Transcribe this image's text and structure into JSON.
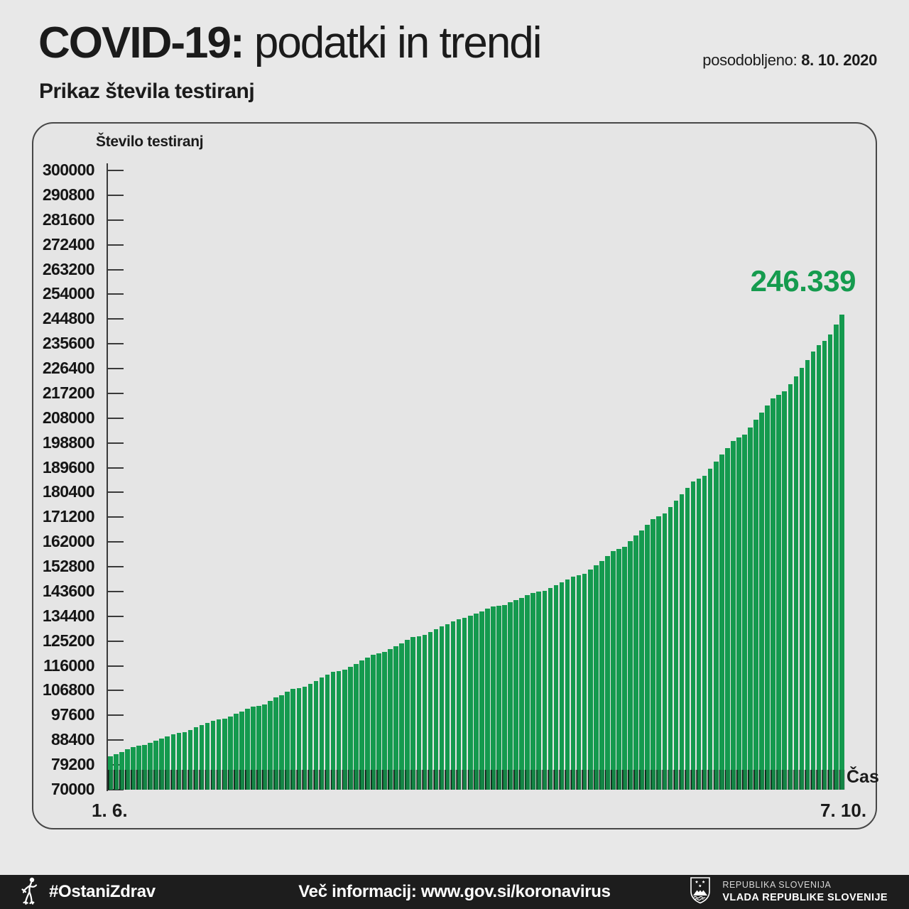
{
  "header": {
    "title_strong": "COVID-19:",
    "title_rest": " podatki in trendi",
    "updated_label": "posodobljeno: ",
    "updated_date": "8. 10. 2020",
    "subtitle": "Prikaz števila testiranj"
  },
  "chart": {
    "y_axis_title": "Število testiranj",
    "value_label": "246.339",
    "x_first": "1. 6.",
    "x_last": "7. 10.",
    "x_axis_label": "Čas",
    "bar_color": "#149a4e",
    "callout_color": "#159b4e"
  },
  "chart_data": {
    "type": "bar",
    "title": "Prikaz števila testiranj",
    "ylabel": "Število testiranj",
    "xlabel": "Čas",
    "ylim": [
      70000,
      300000
    ],
    "ytick_step": 9200,
    "yticks": [
      300000,
      290800,
      281600,
      272400,
      263200,
      254000,
      244800,
      235600,
      226400,
      217200,
      208000,
      198800,
      189600,
      180400,
      171200,
      162000,
      152800,
      143600,
      134400,
      125200,
      116000,
      106800,
      97600,
      88400,
      79200,
      70000
    ],
    "x_start_label": "1. 6.",
    "x_end_label": "7. 10.",
    "final_value": 246339,
    "final_value_label": "246.339",
    "grid": false,
    "legend": false,
    "values": [
      82300,
      83200,
      84100,
      85000,
      85850,
      86250,
      86550,
      87350,
      88200,
      89050,
      89900,
      90700,
      91050,
      91350,
      92200,
      93100,
      94000,
      94850,
      95650,
      96000,
      96300,
      97200,
      98150,
      99100,
      100000,
      100850,
      101250,
      101600,
      102900,
      104200,
      105200,
      106300,
      107400,
      107850,
      108250,
      109350,
      110450,
      111550,
      112650,
      113700,
      114150,
      114550,
      115650,
      116800,
      117950,
      119100,
      120200,
      120650,
      121050,
      122150,
      123300,
      124450,
      125550,
      126600,
      127050,
      127450,
      128500,
      129550,
      130550,
      131500,
      132400,
      133400,
      133800,
      134600,
      135450,
      136300,
      137150,
      137950,
      138350,
      138700,
      139550,
      140450,
      141350,
      142250,
      143100,
      143550,
      143950,
      144900,
      145900,
      146950,
      148050,
      149150,
      149700,
      150200,
      151700,
      153300,
      155000,
      156750,
      158500,
      159400,
      160200,
      162200,
      164300,
      166300,
      168400,
      170500,
      171600,
      172600,
      174900,
      177300,
      179700,
      182100,
      184400,
      185600,
      186700,
      189200,
      191800,
      194400,
      197000,
      199500,
      200800,
      202000,
      204600,
      207300,
      210000,
      212700,
      215300,
      216700,
      218000,
      220700,
      223600,
      226600,
      229700,
      232700,
      235100,
      236600,
      239200,
      242700,
      246339
    ]
  },
  "footer": {
    "hashtag": "#OstaniZdrav",
    "info": "Več informacij: www.gov.si/koronavirus",
    "gov_line1": "REPUBLIKA SLOVENIJA",
    "gov_line2": "VLADA REPUBLIKE SLOVENIJE"
  }
}
